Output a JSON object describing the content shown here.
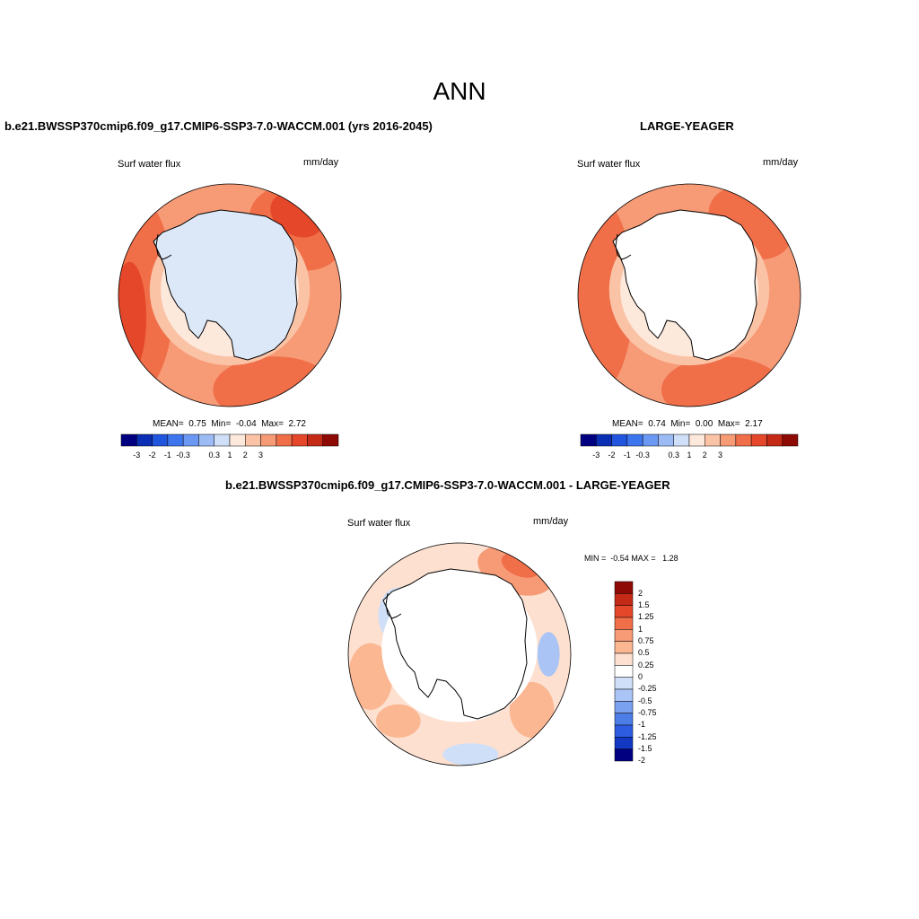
{
  "figure_title": "ANN",
  "panels": [
    {
      "title": "b.e21.BWSSP370cmip6.f09_g17.CMIP6-SSP3-7.0-WACCM.001 (yrs 2016-2045)",
      "left_label": "Surf water flux",
      "right_label": "mm/day",
      "stats": {
        "mean_label": "MEAN=",
        "mean": "0.75",
        "min_label": "Min=",
        "min": "-0.04",
        "max_label": "Max=",
        "max": "2.72"
      }
    },
    {
      "title": "LARGE-YEAGER",
      "left_label": "Surf water flux",
      "right_label": "mm/day",
      "stats": {
        "mean_label": "MEAN=",
        "mean": "0.74",
        "min_label": "Min=",
        "min": "0.00",
        "max_label": "Max=",
        "max": "2.17"
      }
    },
    {
      "title": "b.e21.BWSSP370cmip6.f09_g17.CMIP6-SSP3-7.0-WACCM.001 - LARGE-YEAGER",
      "left_label": "Surf water flux",
      "right_label": "mm/day",
      "minmax": {
        "min_label": "MIN =",
        "min": "-0.54",
        "max_label": "MAX =",
        "max": "1.28"
      }
    }
  ],
  "chart_data": [
    {
      "type": "heatmap",
      "projection": "south-polar-stereographic",
      "variable": "Surf water flux",
      "units": "mm/day",
      "colorbar": {
        "orientation": "horizontal",
        "labels": [
          "-3",
          "-2",
          "-1",
          "-0.3",
          "0.3",
          "1",
          "2",
          "3"
        ],
        "colors": [
          "#000080",
          "#0a2fb4",
          "#2255dd",
          "#3d75ee",
          "#6b98f2",
          "#9cbbf5",
          "#cfdff8",
          "#fde8dc",
          "#fbc3a6",
          "#f79a76",
          "#f06e48",
          "#e5472a",
          "#c52a17",
          "#8e0b05"
        ]
      },
      "stats": {
        "mean": 0.75,
        "min": -0.04,
        "max": 2.72
      }
    },
    {
      "type": "heatmap",
      "projection": "south-polar-stereographic",
      "variable": "Surf water flux",
      "units": "mm/day",
      "colorbar": {
        "orientation": "horizontal",
        "labels": [
          "-3",
          "-2",
          "-1",
          "-0.3",
          "0.3",
          "1",
          "2",
          "3"
        ],
        "colors": [
          "#000080",
          "#0a2fb4",
          "#2255dd",
          "#3d75ee",
          "#6b98f2",
          "#9cbbf5",
          "#cfdff8",
          "#fde8dc",
          "#fbc3a6",
          "#f79a76",
          "#f06e48",
          "#e5472a",
          "#c52a17",
          "#8e0b05"
        ]
      },
      "stats": {
        "mean": 0.74,
        "min": 0.0,
        "max": 2.17
      }
    },
    {
      "type": "heatmap",
      "projection": "south-polar-stereographic",
      "variable": "Surf water flux",
      "units": "mm/day",
      "colorbar": {
        "orientation": "vertical",
        "labels": [
          "2",
          "1.5",
          "1.25",
          "1",
          "0.75",
          "0.5",
          "0.25",
          "0",
          "-0.25",
          "-0.5",
          "-0.75",
          "-1",
          "-1.25",
          "-1.5",
          "-2"
        ],
        "colors": [
          "#8e0b05",
          "#c52a17",
          "#e5472a",
          "#f06e48",
          "#f79a76",
          "#fbb692",
          "#fde0cf",
          "#ffffff",
          "#cfdff8",
          "#a9c4f5",
          "#7aa0f0",
          "#4d7ee8",
          "#2d5ce0",
          "#1338c4",
          "#000080"
        ]
      },
      "stats": {
        "min": -0.54,
        "max": 1.28
      }
    }
  ]
}
